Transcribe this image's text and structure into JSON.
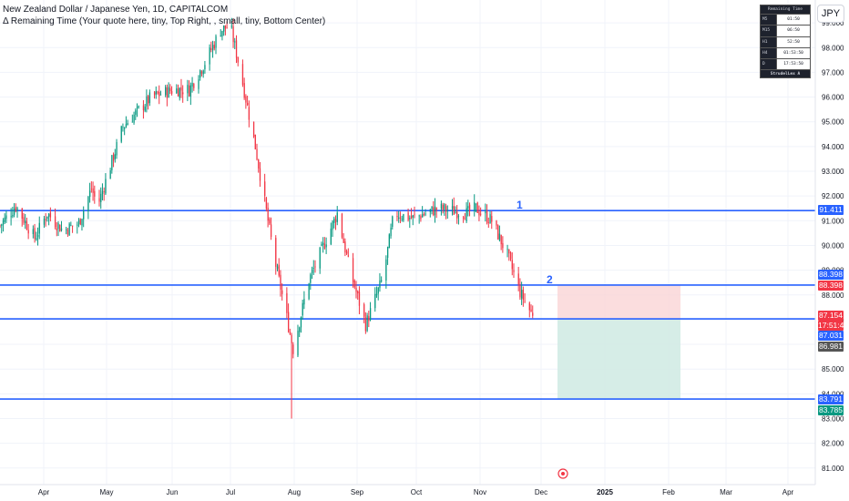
{
  "legend": {
    "symbol": "New Zealand Dollar / Japanese Yen, 1D, CAPITALCOM",
    "indicator": "Δ Remaining Time (Your quote here, tiny, Top Right, , small, tiny, Bottom Center)"
  },
  "currency_label": "JPY",
  "remaining_time": {
    "title": "Remaining Time",
    "rows": [
      {
        "tf": "M5",
        "value": "01:50"
      },
      {
        "tf": "M15",
        "value": "06:50"
      },
      {
        "tf": "H1",
        "value": "52:50"
      },
      {
        "tf": "H4",
        "value": "01:53:50"
      },
      {
        "tf": "D",
        "value": "17:53:50"
      }
    ],
    "footer": "StrudelLex A"
  },
  "wave_labels": [
    "1",
    "2"
  ],
  "colors": {
    "up": "#089981",
    "down": "#f23645",
    "line": "#2962ff",
    "stop_zone": "#fad4d6",
    "target_zone": "#d1ebe4"
  },
  "price_labels": [
    {
      "text": "91.411",
      "color": "#2962ff"
    },
    {
      "text": "88.398",
      "color": "#2962ff"
    },
    {
      "text": "88.398",
      "color": "#f23645"
    },
    {
      "text": "87.154",
      "color": "#f23645"
    },
    {
      "text": "17:51:49",
      "color": "#f23645"
    },
    {
      "text": "87.031",
      "color": "#2962ff"
    },
    {
      "text": "86.981",
      "color": "#555555"
    },
    {
      "text": "83.791",
      "color": "#2962ff"
    },
    {
      "text": "83.785",
      "color": "#089981"
    }
  ],
  "chart_data": {
    "type": "candlestick",
    "title": "New Zealand Dollar / Japanese Yen, 1D, CAPITALCOM",
    "y_ticks": [
      "99.000",
      "98.000",
      "97.000",
      "96.000",
      "95.000",
      "94.000",
      "93.000",
      "92.000",
      "91.000",
      "90.000",
      "89.000",
      "88.000",
      "87.000",
      "86.000",
      "85.000",
      "84.000",
      "83.000",
      "82.000",
      "81.000"
    ],
    "x_ticks": [
      "Apr",
      "May",
      "Jun",
      "Jul",
      "Aug",
      "Sep",
      "Oct",
      "Nov",
      "Dec",
      "2025",
      "Feb",
      "Mar",
      "Apr"
    ],
    "ylim": [
      80.5,
      99.5
    ],
    "horizontal_levels": [
      91.411,
      88.398,
      87.031,
      83.791
    ],
    "position": {
      "entry": 87.031,
      "stop": 88.398,
      "target": 83.791
    },
    "last_price": 87.154,
    "waypoints": [
      {
        "day": 0,
        "price": 90.8
      },
      {
        "day": 10,
        "price": 91.6
      },
      {
        "day": 22,
        "price": 90.3
      },
      {
        "day": 30,
        "price": 91.3
      },
      {
        "day": 40,
        "price": 90.6
      },
      {
        "day": 50,
        "price": 90.9
      },
      {
        "day": 58,
        "price": 92.3
      },
      {
        "day": 62,
        "price": 91.6
      },
      {
        "day": 78,
        "price": 94.8
      },
      {
        "day": 96,
        "price": 96.0
      },
      {
        "day": 110,
        "price": 96.3
      },
      {
        "day": 120,
        "price": 96.3
      },
      {
        "day": 130,
        "price": 97.4
      },
      {
        "day": 140,
        "price": 98.7
      },
      {
        "day": 146,
        "price": 98.9
      },
      {
        "day": 152,
        "price": 97.2
      },
      {
        "day": 162,
        "price": 94.0
      },
      {
        "day": 174,
        "price": 89.5
      },
      {
        "day": 181,
        "price": 87.4
      },
      {
        "day": 186,
        "price": 85.8
      },
      {
        "day": 196,
        "price": 88.6
      },
      {
        "day": 214,
        "price": 91.3
      },
      {
        "day": 222,
        "price": 89.0
      },
      {
        "day": 232,
        "price": 86.8
      },
      {
        "day": 243,
        "price": 88.7
      },
      {
        "day": 250,
        "price": 91.3
      },
      {
        "day": 262,
        "price": 91.1
      },
      {
        "day": 278,
        "price": 91.5
      },
      {
        "day": 296,
        "price": 91.3
      },
      {
        "day": 302,
        "price": 91.5
      },
      {
        "day": 312,
        "price": 91.0
      },
      {
        "day": 322,
        "price": 89.6
      },
      {
        "day": 330,
        "price": 88.1
      },
      {
        "day": 338,
        "price": 87.154
      }
    ]
  }
}
